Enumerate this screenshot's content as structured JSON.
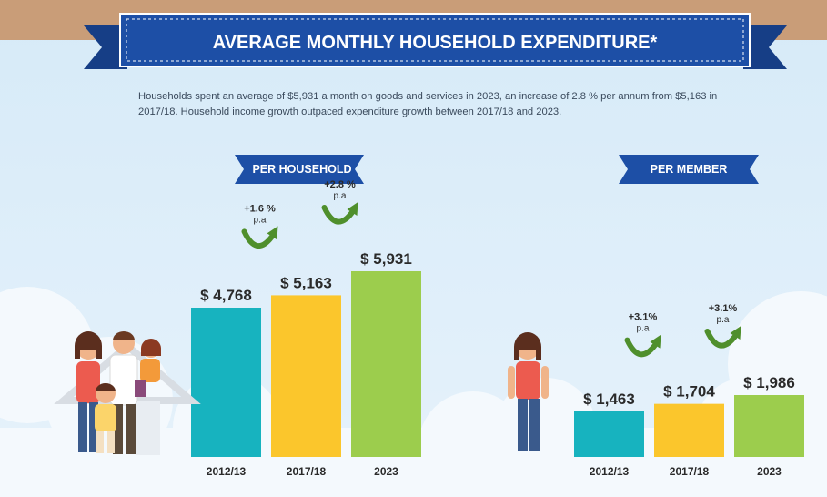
{
  "title": "AVERAGE MONTHLY HOUSEHOLD EXPENDITURE*",
  "description": "Households spent an average of $5,931 a month on goods and services in 2023, an increase of 2.8 % per annum from $5,163 in 2017/18. Household income growth outpaced expenditure growth between 2017/18 and 2023.",
  "colors": {
    "banner": "#1d4fa6",
    "teal": "#17b3bf",
    "yellow": "#fbc62c",
    "green": "#9ccd4d",
    "arrow": "#4f8f2c"
  },
  "chart_data": [
    {
      "type": "bar",
      "title": "PER HOUSEHOLD",
      "categories": [
        "2012/13",
        "2017/18",
        "2023"
      ],
      "values": [
        4768,
        5163,
        5931
      ],
      "value_labels": [
        "$ 4,768",
        "$ 5,163",
        "$ 5,931"
      ],
      "colors": [
        "#17b3bf",
        "#fbc62c",
        "#9ccd4d"
      ],
      "growth": [
        {
          "line1": "+1.6 %",
          "line2": "p.a"
        },
        {
          "line1": "+2.8 %",
          "line2": "p.a"
        }
      ]
    },
    {
      "type": "bar",
      "title": "PER MEMBER",
      "categories": [
        "2012/13",
        "2017/18",
        "2023"
      ],
      "values": [
        1463,
        1704,
        1986
      ],
      "value_labels": [
        "$ 1,463",
        "$ 1,704",
        "$ 1,986"
      ],
      "colors": [
        "#17b3bf",
        "#fbc62c",
        "#9ccd4d"
      ],
      "growth": [
        {
          "line1": "+3.1%",
          "line2": "p.a"
        },
        {
          "line1": "+3.1%",
          "line2": "p.a"
        }
      ]
    }
  ]
}
